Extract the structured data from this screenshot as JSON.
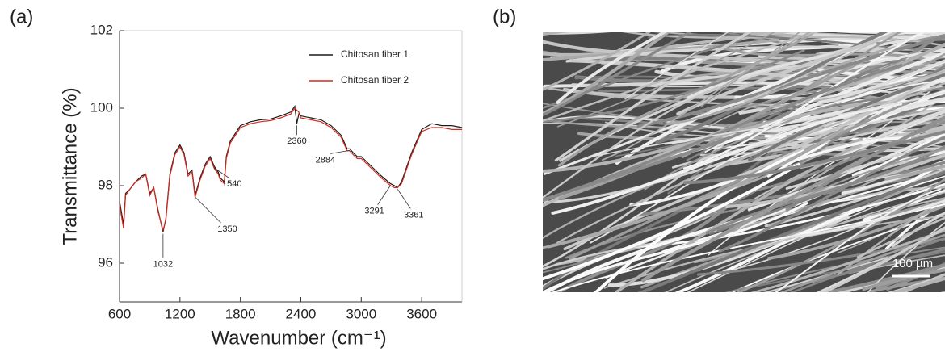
{
  "panels": [
    "(a)",
    "(b)"
  ],
  "chart_data": {
    "type": "line",
    "x_label": "Wavenumber (cm⁻¹)",
    "y_label": "Transmittance (%)",
    "x": [
      600,
      640,
      660,
      700,
      760,
      820,
      860,
      900,
      940,
      980,
      1032,
      1060,
      1100,
      1150,
      1200,
      1240,
      1280,
      1320,
      1350,
      1400,
      1450,
      1500,
      1540,
      1580,
      1600,
      1640,
      1660,
      1700,
      1800,
      1900,
      2000,
      2100,
      2200,
      2300,
      2340,
      2360,
      2380,
      2400,
      2500,
      2600,
      2700,
      2800,
      2860,
      2884,
      2920,
      2960,
      3000,
      3100,
      3200,
      3291,
      3330,
      3361,
      3400,
      3500,
      3600,
      3700,
      3800,
      3900,
      4000
    ],
    "series": [
      {
        "name": "Chitosan fiber 1",
        "color": "#1a1a1a",
        "values": [
          97.6,
          97.0,
          97.8,
          97.9,
          98.1,
          98.25,
          98.3,
          97.8,
          97.95,
          97.4,
          96.8,
          97.15,
          98.3,
          98.85,
          99.05,
          98.85,
          98.3,
          98.4,
          97.75,
          98.2,
          98.55,
          98.75,
          98.5,
          98.35,
          98.2,
          98.1,
          98.75,
          99.15,
          99.55,
          99.65,
          99.7,
          99.72,
          99.8,
          99.9,
          100.05,
          99.6,
          99.85,
          99.8,
          99.75,
          99.7,
          99.55,
          99.3,
          98.95,
          98.95,
          98.85,
          98.75,
          98.75,
          98.5,
          98.25,
          98.05,
          98.0,
          97.95,
          98.1,
          98.85,
          99.45,
          99.6,
          99.55,
          99.55,
          99.5
        ]
      },
      {
        "name": "Chitosan fiber 2",
        "color": "#d42a20",
        "values": [
          97.5,
          96.9,
          97.75,
          97.9,
          98.1,
          98.2,
          98.3,
          97.75,
          97.95,
          97.35,
          96.85,
          97.1,
          98.25,
          98.8,
          99.0,
          98.8,
          98.25,
          98.35,
          97.7,
          98.15,
          98.5,
          98.7,
          98.45,
          98.3,
          98.15,
          98.05,
          98.7,
          99.1,
          99.5,
          99.6,
          99.65,
          99.68,
          99.75,
          99.85,
          100.0,
          99.95,
          99.9,
          99.75,
          99.7,
          99.65,
          99.5,
          99.25,
          98.9,
          98.9,
          98.8,
          98.7,
          98.7,
          98.45,
          98.2,
          98.0,
          97.95,
          97.95,
          98.05,
          98.8,
          99.4,
          99.5,
          99.5,
          99.45,
          99.45
        ]
      }
    ],
    "annotations": [
      1032,
      1350,
      1540,
      2360,
      2884,
      3291,
      3361
    ],
    "xlim": [
      600,
      4000
    ],
    "xticks": [
      600,
      1200,
      1800,
      2400,
      3000,
      3600
    ],
    "ylim": [
      95,
      102
    ],
    "yticks": [
      96,
      98,
      100,
      102
    ],
    "grid": false,
    "legend": "upper right"
  },
  "image": {
    "scale_bar": "100 µm"
  }
}
